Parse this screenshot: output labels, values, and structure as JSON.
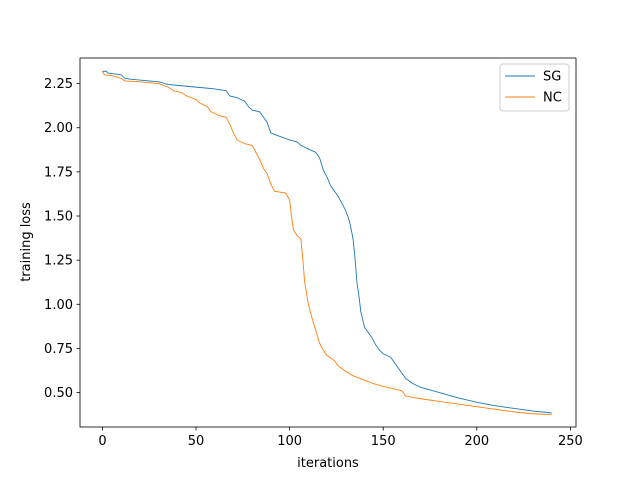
{
  "chart_data": {
    "type": "line",
    "xlabel": "iterations",
    "ylabel": "training loss",
    "xlim": [
      -12,
      253
    ],
    "ylim": [
      0.305,
      2.395
    ],
    "x_ticks": [
      0,
      50,
      100,
      150,
      200,
      250
    ],
    "y_ticks": [
      0.5,
      0.75,
      1.0,
      1.25,
      1.5,
      1.75,
      2.0,
      2.25
    ],
    "x_tick_labels": [
      "0",
      "50",
      "100",
      "150",
      "200",
      "250"
    ],
    "y_tick_labels": [
      "0.50",
      "0.75",
      "1.00",
      "1.25",
      "1.50",
      "1.75",
      "2.00",
      "2.25"
    ],
    "grid": false,
    "legend_position": "top-right",
    "series": [
      {
        "name": "SG",
        "color": "#1f77b4",
        "points": [
          [
            0,
            2.32
          ],
          [
            2,
            2.32
          ],
          [
            3,
            2.31
          ],
          [
            10,
            2.3
          ],
          [
            12,
            2.28
          ],
          [
            15,
            2.275
          ],
          [
            20,
            2.27
          ],
          [
            30,
            2.26
          ],
          [
            35,
            2.245
          ],
          [
            40,
            2.24
          ],
          [
            50,
            2.23
          ],
          [
            55,
            2.225
          ],
          [
            60,
            2.22
          ],
          [
            66,
            2.21
          ],
          [
            68,
            2.18
          ],
          [
            72,
            2.17
          ],
          [
            76,
            2.15
          ],
          [
            78,
            2.12
          ],
          [
            80,
            2.1
          ],
          [
            84,
            2.09
          ],
          [
            86,
            2.06
          ],
          [
            88,
            2.03
          ],
          [
            90,
            1.97
          ],
          [
            95,
            1.95
          ],
          [
            100,
            1.93
          ],
          [
            104,
            1.92
          ],
          [
            106,
            1.9
          ],
          [
            110,
            1.88
          ],
          [
            114,
            1.86
          ],
          [
            116,
            1.83
          ],
          [
            118,
            1.76
          ],
          [
            120,
            1.72
          ],
          [
            122,
            1.67
          ],
          [
            124,
            1.64
          ],
          [
            126,
            1.61
          ],
          [
            128,
            1.57
          ],
          [
            130,
            1.53
          ],
          [
            132,
            1.47
          ],
          [
            133,
            1.42
          ],
          [
            134,
            1.36
          ],
          [
            135,
            1.25
          ],
          [
            136,
            1.12
          ],
          [
            137,
            1.05
          ],
          [
            138,
            0.96
          ],
          [
            140,
            0.87
          ],
          [
            142,
            0.84
          ],
          [
            144,
            0.81
          ],
          [
            146,
            0.77
          ],
          [
            148,
            0.74
          ],
          [
            150,
            0.72
          ],
          [
            154,
            0.7
          ],
          [
            156,
            0.67
          ],
          [
            158,
            0.64
          ],
          [
            160,
            0.61
          ],
          [
            162,
            0.58
          ],
          [
            164,
            0.565
          ],
          [
            166,
            0.55
          ],
          [
            170,
            0.53
          ],
          [
            180,
            0.5
          ],
          [
            190,
            0.47
          ],
          [
            200,
            0.445
          ],
          [
            210,
            0.425
          ],
          [
            220,
            0.41
          ],
          [
            230,
            0.395
          ],
          [
            240,
            0.385
          ]
        ]
      },
      {
        "name": "NC",
        "color": "#ff7f0e",
        "points": [
          [
            0,
            2.32
          ],
          [
            1,
            2.3
          ],
          [
            5,
            2.295
          ],
          [
            10,
            2.28
          ],
          [
            12,
            2.265
          ],
          [
            20,
            2.26
          ],
          [
            30,
            2.25
          ],
          [
            35,
            2.23
          ],
          [
            38,
            2.21
          ],
          [
            42,
            2.2
          ],
          [
            45,
            2.18
          ],
          [
            50,
            2.16
          ],
          [
            52,
            2.14
          ],
          [
            56,
            2.12
          ],
          [
            58,
            2.09
          ],
          [
            62,
            2.07
          ],
          [
            66,
            2.06
          ],
          [
            68,
            2.02
          ],
          [
            70,
            1.97
          ],
          [
            72,
            1.93
          ],
          [
            76,
            1.91
          ],
          [
            80,
            1.9
          ],
          [
            82,
            1.86
          ],
          [
            84,
            1.82
          ],
          [
            86,
            1.77
          ],
          [
            88,
            1.74
          ],
          [
            90,
            1.68
          ],
          [
            92,
            1.64
          ],
          [
            98,
            1.63
          ],
          [
            100,
            1.59
          ],
          [
            101,
            1.5
          ],
          [
            102,
            1.42
          ],
          [
            104,
            1.39
          ],
          [
            106,
            1.37
          ],
          [
            107,
            1.26
          ],
          [
            108,
            1.13
          ],
          [
            110,
            1.0
          ],
          [
            112,
            0.92
          ],
          [
            114,
            0.85
          ],
          [
            116,
            0.78
          ],
          [
            118,
            0.74
          ],
          [
            120,
            0.71
          ],
          [
            124,
            0.68
          ],
          [
            126,
            0.65
          ],
          [
            130,
            0.62
          ],
          [
            134,
            0.595
          ],
          [
            140,
            0.57
          ],
          [
            145,
            0.55
          ],
          [
            150,
            0.535
          ],
          [
            160,
            0.51
          ],
          [
            162,
            0.48
          ],
          [
            170,
            0.465
          ],
          [
            180,
            0.45
          ],
          [
            190,
            0.435
          ],
          [
            200,
            0.42
          ],
          [
            210,
            0.405
          ],
          [
            220,
            0.39
          ],
          [
            230,
            0.38
          ],
          [
            240,
            0.375
          ]
        ]
      }
    ]
  }
}
